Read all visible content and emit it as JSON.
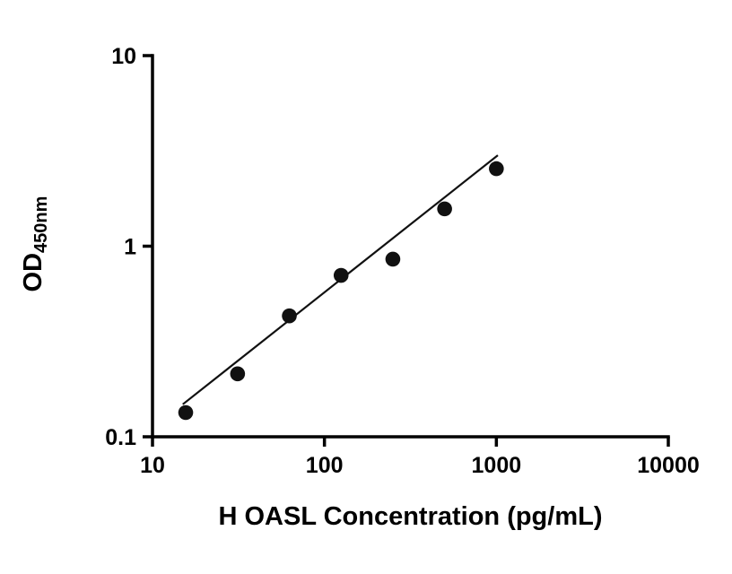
{
  "chart_data": {
    "type": "scatter",
    "title": "",
    "xlabel": "H OASL Concentration (pg/mL)",
    "ylabel_main": "OD",
    "ylabel_sub": "450nm",
    "x_scale": "log",
    "y_scale": "log",
    "xlim": [
      10,
      10000
    ],
    "ylim": [
      0.1,
      10
    ],
    "grid": false,
    "legend": "none",
    "x_ticks": [
      10,
      100,
      1000,
      10000
    ],
    "x_tick_labels": [
      "10",
      "100",
      "1000",
      "10000"
    ],
    "y_ticks": [
      0.1,
      1,
      10
    ],
    "y_tick_labels": [
      "0.1",
      "1",
      "10"
    ],
    "points": [
      {
        "x": 15.6,
        "y": 0.134
      },
      {
        "x": 31.25,
        "y": 0.214
      },
      {
        "x": 62.5,
        "y": 0.431
      },
      {
        "x": 125,
        "y": 0.703
      },
      {
        "x": 250,
        "y": 0.855
      },
      {
        "x": 500,
        "y": 1.57
      },
      {
        "x": 1000,
        "y": 2.55
      }
    ],
    "trend_line": {
      "x1": 15,
      "y1": 0.148,
      "x2": 1020,
      "y2": 3.0
    },
    "marker_color": "#111111",
    "line_color": "#111111",
    "axis_color": "#000000",
    "background_color": "#ffffff"
  }
}
